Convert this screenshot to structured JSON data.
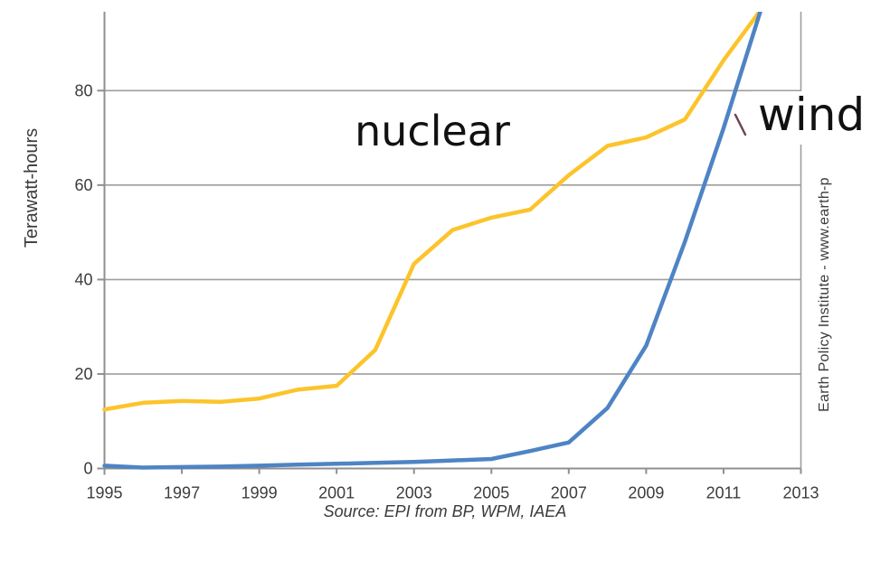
{
  "colors": {
    "nuclear_line": "#FCC42C",
    "wind_line": "#4E84C4",
    "grid": "#9E9E9E",
    "axis": "#8F8F8F",
    "tick_text": "#3D3D3D",
    "leader_mark": "#6E4558"
  },
  "chart_data": {
    "type": "line",
    "title": "",
    "ylabel": "Terawatt-hours",
    "xlabel": "",
    "source_note": "Source: EPI from BP, WPM, IAEA",
    "credit": "Earth Policy Institute - www.earth-p",
    "grid": "horizontal",
    "legend_position": "inline-annotations",
    "xlim": [
      1995,
      2013
    ],
    "ylim": [
      0,
      96.7
    ],
    "xticks": [
      1995,
      1997,
      1999,
      2001,
      2003,
      2005,
      2007,
      2009,
      2011,
      2013
    ],
    "yticks": [
      0,
      20,
      40,
      60,
      80
    ],
    "x": [
      1995,
      1996,
      1997,
      1998,
      1999,
      2000,
      2001,
      2002,
      2003,
      2004,
      2005,
      2006,
      2007,
      2008,
      2009,
      2010,
      2011,
      2012
    ],
    "series": [
      {
        "name": "nuclear",
        "color": "#FCC42C",
        "values": [
          12.5,
          13.9,
          14.3,
          14.1,
          14.8,
          16.7,
          17.5,
          25.1,
          43.3,
          50.5,
          53.1,
          54.8,
          62.1,
          68.3,
          70.1,
          73.9,
          86.4,
          97.5
        ]
      },
      {
        "name": "wind",
        "color": "#4E84C4",
        "values": [
          0.6,
          0.2,
          0.3,
          0.4,
          0.6,
          0.8,
          1.0,
          1.2,
          1.4,
          1.7,
          2.0,
          3.7,
          5.5,
          12.8,
          26.0,
          48.0,
          72.0,
          98.0
        ]
      }
    ],
    "annotations": [
      {
        "text": "nuclear",
        "series": "nuclear"
      },
      {
        "text": "wind",
        "series": "wind"
      }
    ]
  }
}
